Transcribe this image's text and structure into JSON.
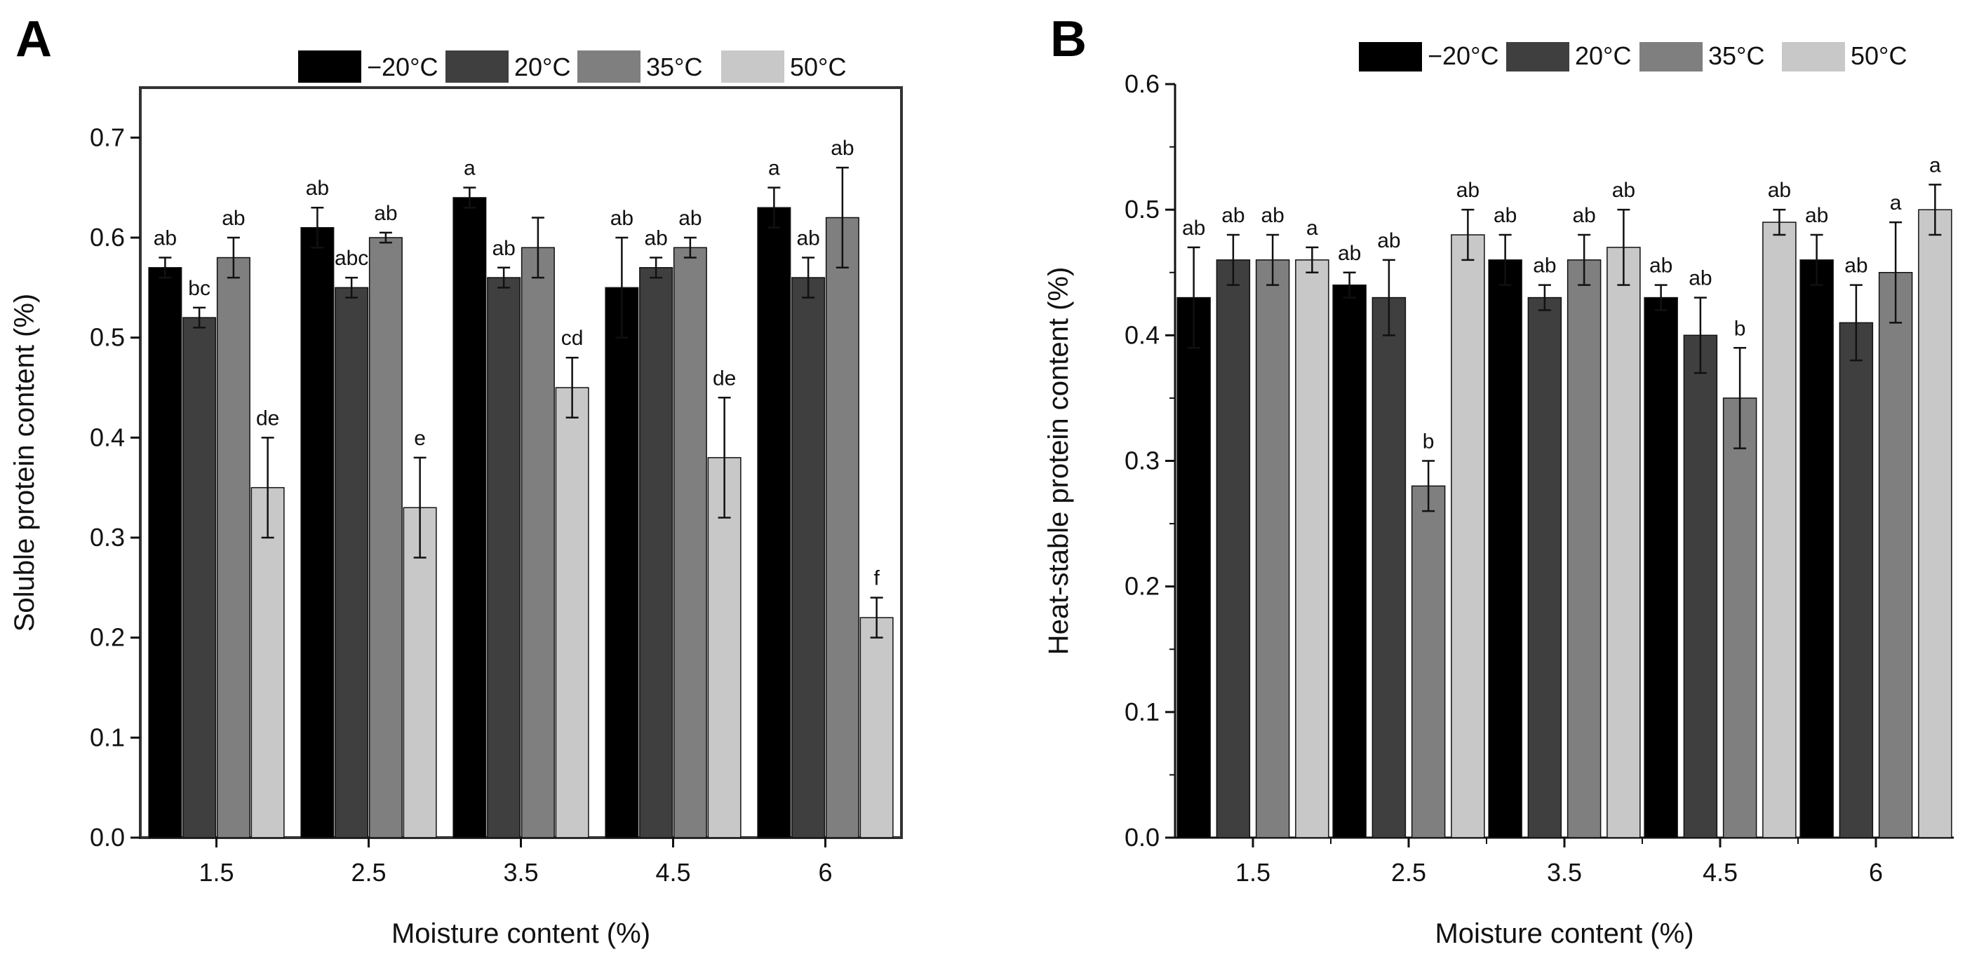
{
  "panels": [
    {
      "letter": "A",
      "xlabel": "Moisture content (%)",
      "ylabel": "Soluble protein content (%)",
      "legend": [
        "−20°C",
        "20°C",
        "35°C",
        "50°C"
      ],
      "yticks": [
        "0.0",
        "0.1",
        "0.2",
        "0.3",
        "0.4",
        "0.5",
        "0.6",
        "0.7"
      ],
      "xticks": [
        "1.5",
        "2.5",
        "3.5",
        "4.5",
        "6"
      ]
    },
    {
      "letter": "B",
      "xlabel": "Moisture content (%)",
      "ylabel": "Heat-stable protein content (%)",
      "legend": [
        "−20°C",
        "20°C",
        "35°C",
        "50°C"
      ],
      "yticks": [
        "0.0",
        "0.1",
        "0.2",
        "0.3",
        "0.4",
        "0.5",
        "0.6"
      ],
      "xticks": [
        "1.5",
        "2.5",
        "3.5",
        "4.5",
        "6"
      ]
    }
  ],
  "chart_data": [
    {
      "type": "bar",
      "panel": "A",
      "xlabel": "Moisture content (%)",
      "ylabel": "Soluble protein content (%)",
      "categories": [
        "1.5",
        "2.5",
        "3.5",
        "4.5",
        "6"
      ],
      "ylim": [
        0,
        0.75
      ],
      "ymajor": 0.1,
      "legend_position": "top",
      "colors": [
        "#000000",
        "#3f3f3f",
        "#7f7f7f",
        "#c8c8c8"
      ],
      "series": [
        {
          "name": "−20°C",
          "values": [
            0.57,
            0.61,
            0.64,
            0.55,
            0.63
          ],
          "errors": [
            0.01,
            0.02,
            0.01,
            0.05,
            0.02
          ],
          "letters": [
            "ab",
            "ab",
            "a",
            "ab",
            "a"
          ]
        },
        {
          "name": "20°C",
          "values": [
            0.52,
            0.55,
            0.56,
            0.57,
            0.56
          ],
          "errors": [
            0.01,
            0.01,
            0.01,
            0.01,
            0.02
          ],
          "letters": [
            "bc",
            "abc",
            "ab",
            "ab",
            "ab"
          ]
        },
        {
          "name": "35°C",
          "values": [
            0.58,
            0.6,
            0.59,
            0.59,
            0.62
          ],
          "errors": [
            0.02,
            0.005,
            0.03,
            0.01,
            0.05
          ],
          "letters": [
            "ab",
            "ab",
            "",
            "ab",
            "ab"
          ]
        },
        {
          "name": "50°C",
          "values": [
            0.35,
            0.33,
            0.45,
            0.38,
            0.22
          ],
          "errors": [
            0.05,
            0.05,
            0.03,
            0.06,
            0.02
          ],
          "letters": [
            "de",
            "e",
            "cd",
            "de",
            "f"
          ]
        }
      ]
    },
    {
      "type": "bar",
      "panel": "B",
      "xlabel": "Moisture content (%)",
      "ylabel": "Heat-stable protein content (%)",
      "categories": [
        "1.5",
        "2.5",
        "3.5",
        "4.5",
        "6"
      ],
      "ylim": [
        0,
        0.6
      ],
      "ymajor": 0.1,
      "legend_position": "top",
      "colors": [
        "#000000",
        "#3f3f3f",
        "#7f7f7f",
        "#c8c8c8"
      ],
      "series": [
        {
          "name": "−20°C",
          "values": [
            0.43,
            0.44,
            0.46,
            0.43,
            0.46
          ],
          "errors": [
            0.04,
            0.01,
            0.02,
            0.01,
            0.02
          ],
          "letters": [
            "ab",
            "ab",
            "ab",
            "ab",
            "ab"
          ]
        },
        {
          "name": "20°C",
          "values": [
            0.46,
            0.43,
            0.43,
            0.4,
            0.41
          ],
          "errors": [
            0.02,
            0.03,
            0.01,
            0.03,
            0.03
          ],
          "letters": [
            "ab",
            "ab",
            "ab",
            "ab",
            "ab"
          ]
        },
        {
          "name": "35°C",
          "values": [
            0.46,
            0.28,
            0.46,
            0.35,
            0.45
          ],
          "errors": [
            0.02,
            0.02,
            0.02,
            0.04,
            0.04
          ],
          "letters": [
            "ab",
            "b",
            "ab",
            "b",
            "a"
          ]
        },
        {
          "name": "50°C",
          "values": [
            0.46,
            0.48,
            0.47,
            0.49,
            0.5
          ],
          "errors": [
            0.01,
            0.02,
            0.03,
            0.01,
            0.02
          ],
          "letters": [
            "a",
            "ab",
            "ab",
            "ab",
            "a"
          ]
        }
      ]
    }
  ]
}
